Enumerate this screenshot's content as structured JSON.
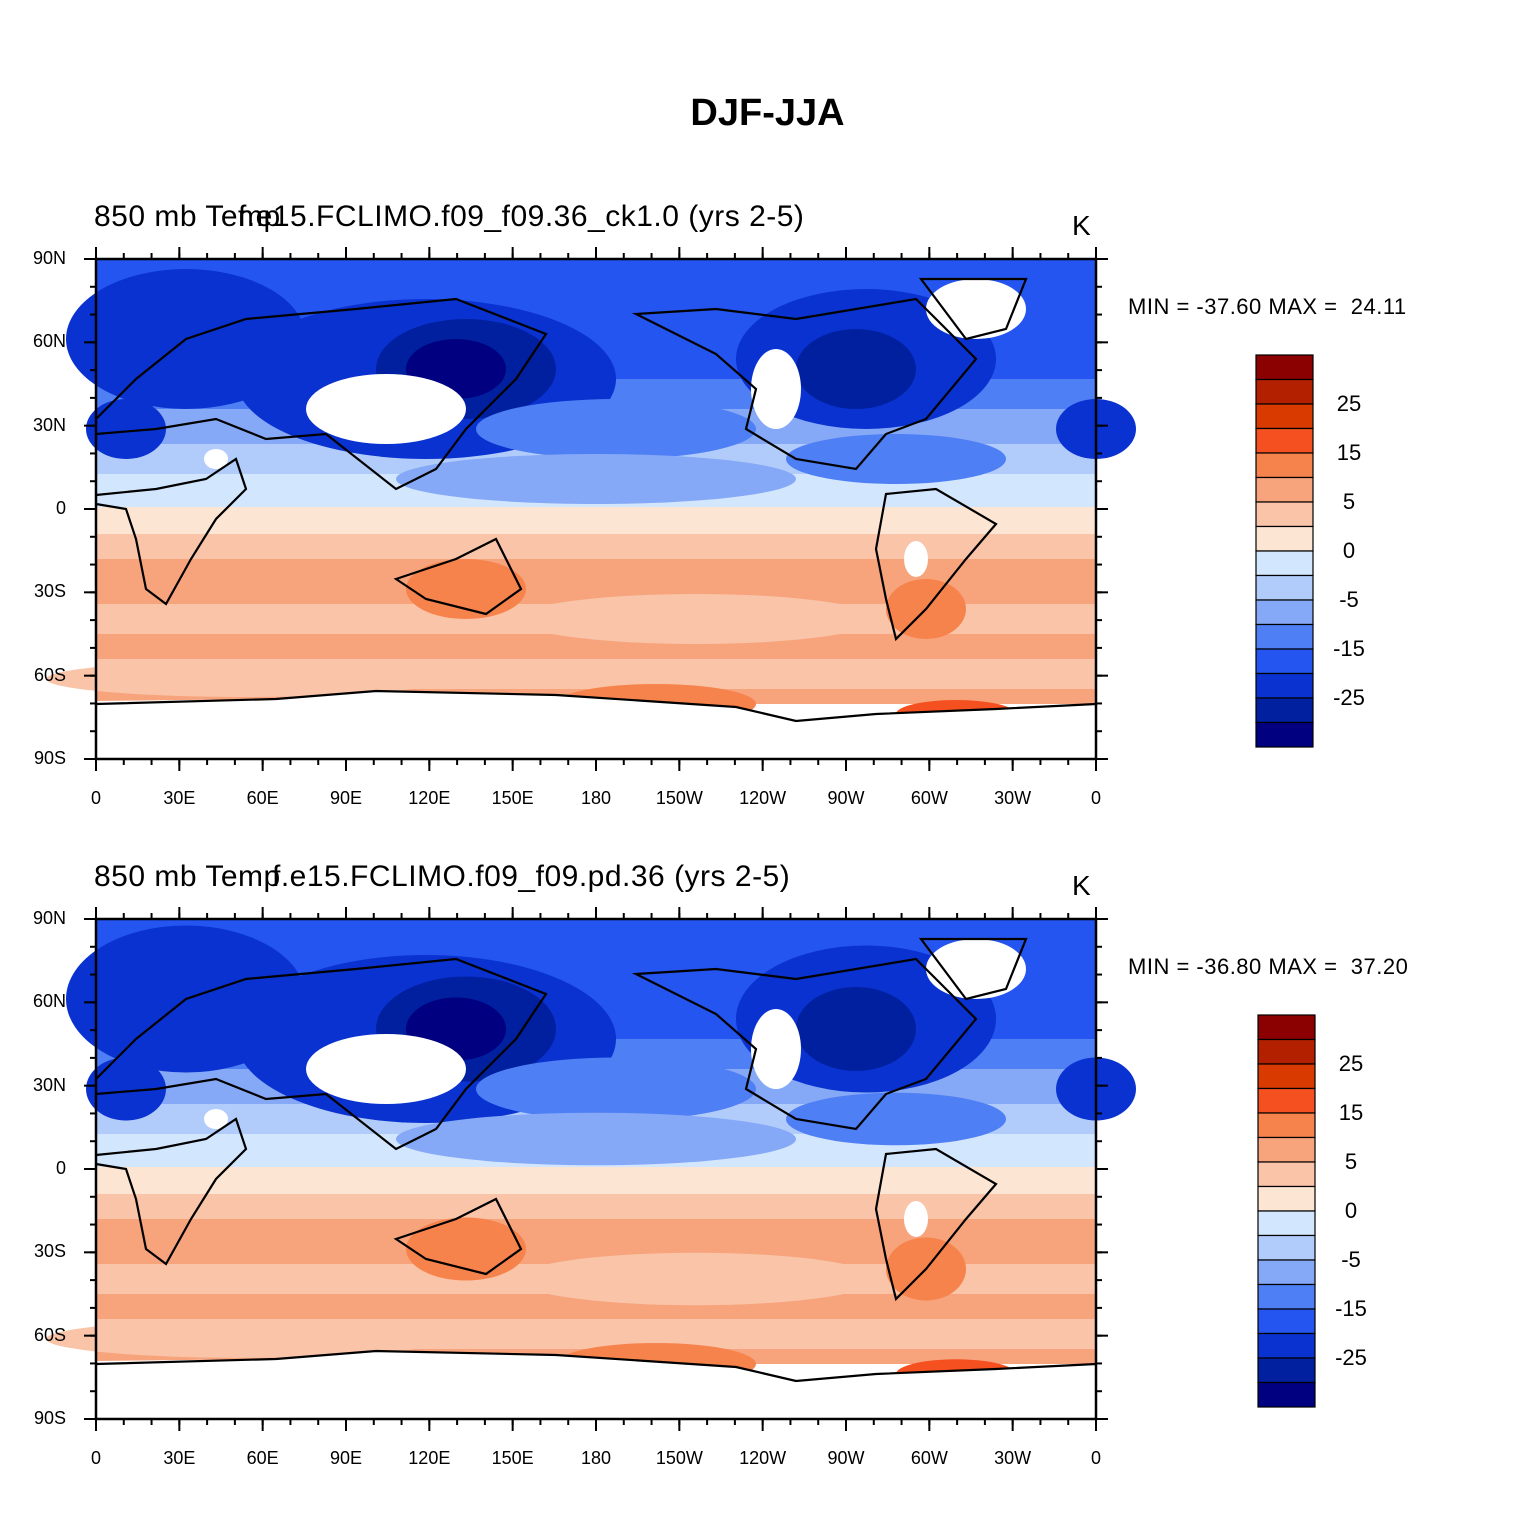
{
  "figure": {
    "title": "DJF-JJA"
  },
  "panels": [
    {
      "title_a": "850 mb Temp",
      "title_b": "f.e15.FCLIMO.f09_f09.36_ck1.0 (yrs 2-5)",
      "unit": "K",
      "minmax": "MIN = -37.60 MAX =  24.11"
    },
    {
      "title_a": "850 mb Temp",
      "title_b": "f.e15.FCLIMO.f09_f09.pd.36 (yrs 2-5)",
      "unit": "K",
      "minmax": "MIN = -36.80 MAX =  37.20"
    }
  ],
  "axes": {
    "lat_ticks": [
      "90N",
      "60N",
      "30N",
      "0",
      "30S",
      "60S",
      "90S"
    ],
    "lon_ticks": [
      "0",
      "30E",
      "60E",
      "90E",
      "120E",
      "150E",
      "180",
      "150W",
      "120W",
      "90W",
      "60W",
      "30W",
      "0"
    ]
  },
  "colorbar": {
    "labels": [
      "25",
      "15",
      "5",
      "0",
      "-5",
      "-15",
      "-25"
    ],
    "colors": [
      "#8b0000",
      "#b22000",
      "#d83a00",
      "#f45020",
      "#f7834c",
      "#f7a37c",
      "#f9c4a8",
      "#fde5d4",
      "#d2e6fd",
      "#b1ccfb",
      "#86a9f7",
      "#4f7ff4",
      "#2455f0",
      "#0a32d0",
      "#0020a0",
      "#000080"
    ]
  },
  "map_colors": {
    "deep_blue": "#000080",
    "dark_blue": "#0020a0",
    "blue": "#0a32d0",
    "mid_blue": "#2455f0",
    "light_blue": "#4f7ff4",
    "pale_blue": "#86a9f7",
    "lighter_blue": "#b1ccfb",
    "palest_blue": "#d2e6fd",
    "cream": "#fde5d4",
    "peach": "#f9c4a8",
    "salmon": "#f7a37c",
    "orange": "#f7834c",
    "red_orange": "#f45020",
    "missing": "#ffffff"
  }
}
